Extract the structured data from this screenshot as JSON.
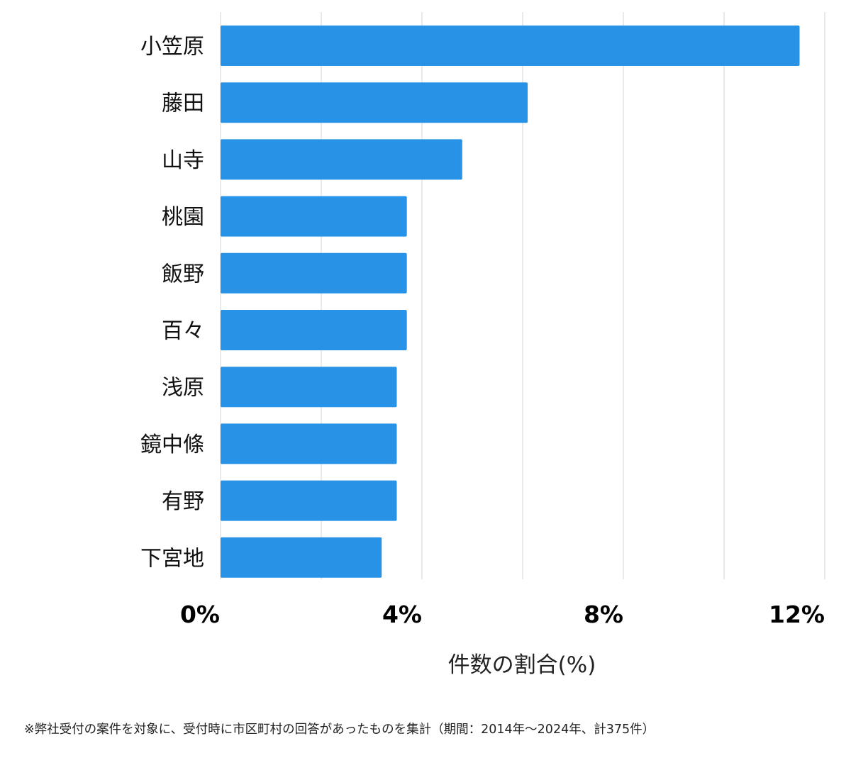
{
  "chart_data": {
    "type": "bar",
    "orientation": "horizontal",
    "categories": [
      "小笠原",
      "藤田",
      "山寺",
      "桃園",
      "飯野",
      "百々",
      "浅原",
      "鏡中條",
      "有野",
      "下宮地"
    ],
    "values": [
      11.5,
      6.1,
      4.8,
      3.7,
      3.7,
      3.7,
      3.5,
      3.5,
      3.5,
      3.2
    ],
    "xlabel": "件数の割合(%)",
    "xlim": [
      0,
      12
    ],
    "xticks": [
      "0%",
      "4%",
      "8%",
      "12%"
    ],
    "grid": true,
    "bar_color": "#2893e6"
  },
  "footnote": "※弊社受付の案件を対象に、受付時に市区町村の回答があったものを集計（期間：2014年～2024年、計375件）"
}
